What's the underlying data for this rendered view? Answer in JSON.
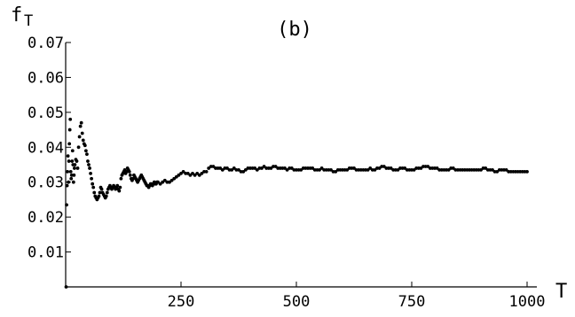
{
  "chart_data": {
    "type": "scatter",
    "title": "(b)",
    "ylabel_main": "f",
    "ylabel_sub": "T",
    "xlabel": "T",
    "xlim": [
      0,
      1000
    ],
    "ylim": [
      0,
      0.07
    ],
    "xticks": [
      {
        "value": 250,
        "label": "250"
      },
      {
        "value": 500,
        "label": "500"
      },
      {
        "value": 750,
        "label": "750"
      },
      {
        "value": 1000,
        "label": "1000"
      }
    ],
    "yticks": [
      {
        "value": 0.01,
        "label": "0.01"
      },
      {
        "value": 0.02,
        "label": "0.02"
      },
      {
        "value": 0.03,
        "label": "0.03"
      },
      {
        "value": 0.04,
        "label": "0.04"
      },
      {
        "value": 0.05,
        "label": "0.05"
      },
      {
        "value": 0.06,
        "label": "0.06"
      },
      {
        "value": 0.07,
        "label": "0.07"
      }
    ],
    "grid": false,
    "series": [
      {
        "points": [
          [
            1,
            0.0
          ],
          [
            2,
            0.0235
          ],
          [
            3,
            0.029
          ],
          [
            4,
            0.033
          ],
          [
            5,
            0.0375
          ],
          [
            6,
            0.03
          ],
          [
            7,
            0.036
          ],
          [
            8,
            0.041
          ],
          [
            9,
            0.045
          ],
          [
            10,
            0.048
          ],
          [
            11,
            0.033
          ],
          [
            12,
            0.031
          ],
          [
            13,
            0.032
          ],
          [
            14,
            0.036
          ],
          [
            15,
            0.039
          ],
          [
            16,
            0.035
          ],
          [
            17,
            0.03
          ],
          [
            18,
            0.032
          ],
          [
            19,
            0.034
          ],
          [
            20,
            0.035
          ],
          [
            22,
            0.0365
          ],
          [
            24,
            0.036
          ],
          [
            26,
            0.034
          ],
          [
            28,
            0.04
          ],
          [
            30,
            0.043
          ],
          [
            32,
            0.046
          ],
          [
            34,
            0.047
          ],
          [
            36,
            0.044
          ],
          [
            38,
            0.042
          ],
          [
            40,
            0.041
          ],
          [
            42,
            0.0405
          ],
          [
            44,
            0.039
          ],
          [
            46,
            0.038
          ],
          [
            48,
            0.036
          ],
          [
            50,
            0.035
          ],
          [
            52,
            0.034
          ],
          [
            54,
            0.0325
          ],
          [
            56,
            0.031
          ],
          [
            58,
            0.0295
          ],
          [
            60,
            0.0285
          ],
          [
            62,
            0.027
          ],
          [
            64,
            0.026
          ],
          [
            66,
            0.0255
          ],
          [
            68,
            0.025
          ],
          [
            70,
            0.0255
          ],
          [
            72,
            0.026
          ],
          [
            74,
            0.027
          ],
          [
            76,
            0.0285
          ],
          [
            78,
            0.028
          ],
          [
            80,
            0.027
          ],
          [
            82,
            0.0265
          ],
          [
            84,
            0.026
          ],
          [
            86,
            0.0255
          ],
          [
            88,
            0.026
          ],
          [
            90,
            0.027
          ],
          [
            92,
            0.028
          ],
          [
            94,
            0.0285
          ],
          [
            96,
            0.029
          ],
          [
            98,
            0.0285
          ],
          [
            100,
            0.028
          ],
          [
            102,
            0.0285
          ],
          [
            104,
            0.029
          ],
          [
            106,
            0.0285
          ],
          [
            108,
            0.028
          ],
          [
            110,
            0.0285
          ],
          [
            112,
            0.029
          ],
          [
            114,
            0.028
          ],
          [
            116,
            0.0275
          ],
          [
            118,
            0.0285
          ],
          [
            120,
            0.031
          ],
          [
            122,
            0.032
          ],
          [
            124,
            0.0325
          ],
          [
            126,
            0.033
          ],
          [
            128,
            0.0335
          ],
          [
            130,
            0.0325
          ],
          [
            132,
            0.033
          ],
          [
            134,
            0.034
          ],
          [
            136,
            0.0335
          ],
          [
            138,
            0.033
          ],
          [
            140,
            0.032
          ],
          [
            142,
            0.031
          ],
          [
            144,
            0.0305
          ],
          [
            146,
            0.031
          ],
          [
            148,
            0.032
          ],
          [
            150,
            0.0315
          ],
          [
            152,
            0.031
          ],
          [
            154,
            0.0305
          ],
          [
            156,
            0.03
          ],
          [
            158,
            0.0305
          ],
          [
            160,
            0.031
          ],
          [
            162,
            0.0315
          ],
          [
            164,
            0.032
          ],
          [
            166,
            0.0315
          ],
          [
            168,
            0.031
          ],
          [
            170,
            0.0305
          ],
          [
            172,
            0.03
          ],
          [
            174,
            0.0295
          ],
          [
            176,
            0.029
          ],
          [
            178,
            0.029
          ],
          [
            180,
            0.0285
          ],
          [
            182,
            0.029
          ],
          [
            184,
            0.0295
          ],
          [
            186,
            0.0295
          ],
          [
            188,
            0.029
          ],
          [
            190,
            0.0295
          ],
          [
            192,
            0.03
          ],
          [
            194,
            0.0295
          ],
          [
            196,
            0.0295
          ],
          [
            198,
            0.03
          ],
          [
            200,
            0.03
          ],
          [
            205,
            0.0295
          ],
          [
            210,
            0.03
          ],
          [
            215,
            0.0305
          ],
          [
            220,
            0.03
          ],
          [
            225,
            0.03
          ],
          [
            230,
            0.0305
          ],
          [
            235,
            0.031
          ],
          [
            240,
            0.0315
          ],
          [
            245,
            0.032
          ],
          [
            250,
            0.0325
          ],
          [
            255,
            0.033
          ],
          [
            260,
            0.0325
          ],
          [
            265,
            0.0325
          ],
          [
            270,
            0.032
          ],
          [
            275,
            0.0325
          ],
          [
            280,
            0.032
          ],
          [
            285,
            0.0325
          ],
          [
            290,
            0.032
          ],
          [
            295,
            0.0325
          ],
          [
            300,
            0.033
          ],
          [
            305,
            0.033
          ],
          [
            310,
            0.034
          ],
          [
            315,
            0.0345
          ],
          [
            320,
            0.0345
          ],
          [
            325,
            0.034
          ],
          [
            330,
            0.034
          ],
          [
            335,
            0.034
          ],
          [
            340,
            0.0335
          ],
          [
            345,
            0.034
          ],
          [
            350,
            0.034
          ],
          [
            355,
            0.0335
          ],
          [
            360,
            0.0335
          ],
          [
            365,
            0.034
          ],
          [
            370,
            0.0335
          ],
          [
            375,
            0.0335
          ],
          [
            380,
            0.033
          ],
          [
            385,
            0.033
          ],
          [
            390,
            0.0335
          ],
          [
            395,
            0.034
          ],
          [
            400,
            0.034
          ],
          [
            405,
            0.034
          ],
          [
            410,
            0.034
          ],
          [
            415,
            0.0335
          ],
          [
            420,
            0.034
          ],
          [
            425,
            0.034
          ],
          [
            430,
            0.0345
          ],
          [
            435,
            0.034
          ],
          [
            440,
            0.034
          ],
          [
            445,
            0.034
          ],
          [
            450,
            0.0345
          ],
          [
            455,
            0.0345
          ],
          [
            460,
            0.034
          ],
          [
            465,
            0.034
          ],
          [
            470,
            0.034
          ],
          [
            475,
            0.034
          ],
          [
            480,
            0.0335
          ],
          [
            485,
            0.034
          ],
          [
            490,
            0.034
          ],
          [
            495,
            0.0335
          ],
          [
            500,
            0.0335
          ],
          [
            505,
            0.0335
          ],
          [
            510,
            0.0335
          ],
          [
            515,
            0.034
          ],
          [
            520,
            0.034
          ],
          [
            525,
            0.034
          ],
          [
            530,
            0.034
          ],
          [
            535,
            0.034
          ],
          [
            540,
            0.0335
          ],
          [
            545,
            0.0335
          ],
          [
            550,
            0.0335
          ],
          [
            555,
            0.034
          ],
          [
            560,
            0.0335
          ],
          [
            565,
            0.0335
          ],
          [
            570,
            0.0335
          ],
          [
            575,
            0.0335
          ],
          [
            580,
            0.033
          ],
          [
            585,
            0.033
          ],
          [
            590,
            0.0335
          ],
          [
            595,
            0.0335
          ],
          [
            600,
            0.0335
          ],
          [
            605,
            0.0335
          ],
          [
            610,
            0.0335
          ],
          [
            615,
            0.034
          ],
          [
            620,
            0.034
          ],
          [
            625,
            0.034
          ],
          [
            630,
            0.0335
          ],
          [
            635,
            0.0335
          ],
          [
            640,
            0.0335
          ],
          [
            645,
            0.0335
          ],
          [
            650,
            0.0335
          ],
          [
            655,
            0.0335
          ],
          [
            660,
            0.034
          ],
          [
            665,
            0.0335
          ],
          [
            670,
            0.0335
          ],
          [
            675,
            0.034
          ],
          [
            680,
            0.034
          ],
          [
            685,
            0.0345
          ],
          [
            690,
            0.0345
          ],
          [
            695,
            0.034
          ],
          [
            700,
            0.034
          ],
          [
            705,
            0.034
          ],
          [
            710,
            0.0335
          ],
          [
            715,
            0.0335
          ],
          [
            720,
            0.0335
          ],
          [
            725,
            0.034
          ],
          [
            730,
            0.034
          ],
          [
            735,
            0.034
          ],
          [
            740,
            0.0335
          ],
          [
            745,
            0.0335
          ],
          [
            750,
            0.0335
          ],
          [
            755,
            0.0335
          ],
          [
            760,
            0.034
          ],
          [
            765,
            0.034
          ],
          [
            770,
            0.034
          ],
          [
            775,
            0.0345
          ],
          [
            780,
            0.0345
          ],
          [
            785,
            0.0345
          ],
          [
            790,
            0.034
          ],
          [
            795,
            0.034
          ],
          [
            800,
            0.034
          ],
          [
            805,
            0.034
          ],
          [
            810,
            0.0335
          ],
          [
            815,
            0.0335
          ],
          [
            820,
            0.0335
          ],
          [
            825,
            0.0335
          ],
          [
            830,
            0.0335
          ],
          [
            835,
            0.034
          ],
          [
            840,
            0.034
          ],
          [
            845,
            0.0335
          ],
          [
            850,
            0.0335
          ],
          [
            855,
            0.0335
          ],
          [
            860,
            0.0335
          ],
          [
            865,
            0.0335
          ],
          [
            870,
            0.0335
          ],
          [
            875,
            0.0335
          ],
          [
            880,
            0.0335
          ],
          [
            885,
            0.0335
          ],
          [
            890,
            0.0335
          ],
          [
            895,
            0.0335
          ],
          [
            900,
            0.0335
          ],
          [
            905,
            0.034
          ],
          [
            910,
            0.034
          ],
          [
            915,
            0.0335
          ],
          [
            920,
            0.0335
          ],
          [
            925,
            0.0335
          ],
          [
            930,
            0.033
          ],
          [
            935,
            0.033
          ],
          [
            940,
            0.0335
          ],
          [
            945,
            0.0335
          ],
          [
            950,
            0.0335
          ],
          [
            955,
            0.0335
          ],
          [
            960,
            0.033
          ],
          [
            965,
            0.033
          ],
          [
            970,
            0.033
          ],
          [
            975,
            0.033
          ],
          [
            980,
            0.033
          ],
          [
            985,
            0.033
          ],
          [
            990,
            0.033
          ],
          [
            995,
            0.033
          ],
          [
            1000,
            0.033
          ]
        ]
      }
    ]
  }
}
